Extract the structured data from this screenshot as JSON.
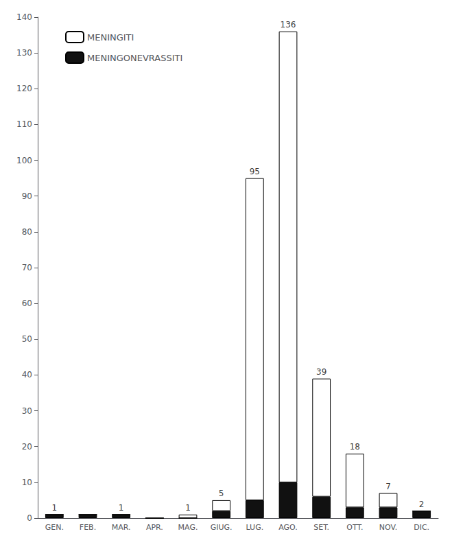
{
  "chart_data": {
    "type": "bar",
    "stacked": true,
    "categories": [
      "GEN.",
      "FEB.",
      "MAR.",
      "APR.",
      "MAG.",
      "GIUG.",
      "LUG.",
      "AGO.",
      "SET.",
      "OTT.",
      "NOV.",
      "DIC."
    ],
    "series": [
      {
        "name": "MENINGONEVRASSITI",
        "color": "#111111",
        "values": [
          1,
          1,
          1,
          0,
          0,
          2,
          5,
          10,
          6,
          3,
          3,
          2
        ]
      },
      {
        "name": "MENINGITI",
        "color": "#ffffff",
        "values": [
          0,
          0,
          0,
          0,
          1,
          3,
          90,
          126,
          33,
          15,
          4,
          0
        ]
      }
    ],
    "totals": [
      1,
      null,
      1,
      null,
      1,
      5,
      95,
      136,
      39,
      18,
      7,
      2
    ],
    "ylim": [
      0,
      140
    ],
    "yticks": [
      0,
      10,
      20,
      30,
      40,
      50,
      60,
      70,
      80,
      90,
      100,
      110,
      120,
      130,
      140
    ],
    "grid": false,
    "legend": "upper left"
  }
}
